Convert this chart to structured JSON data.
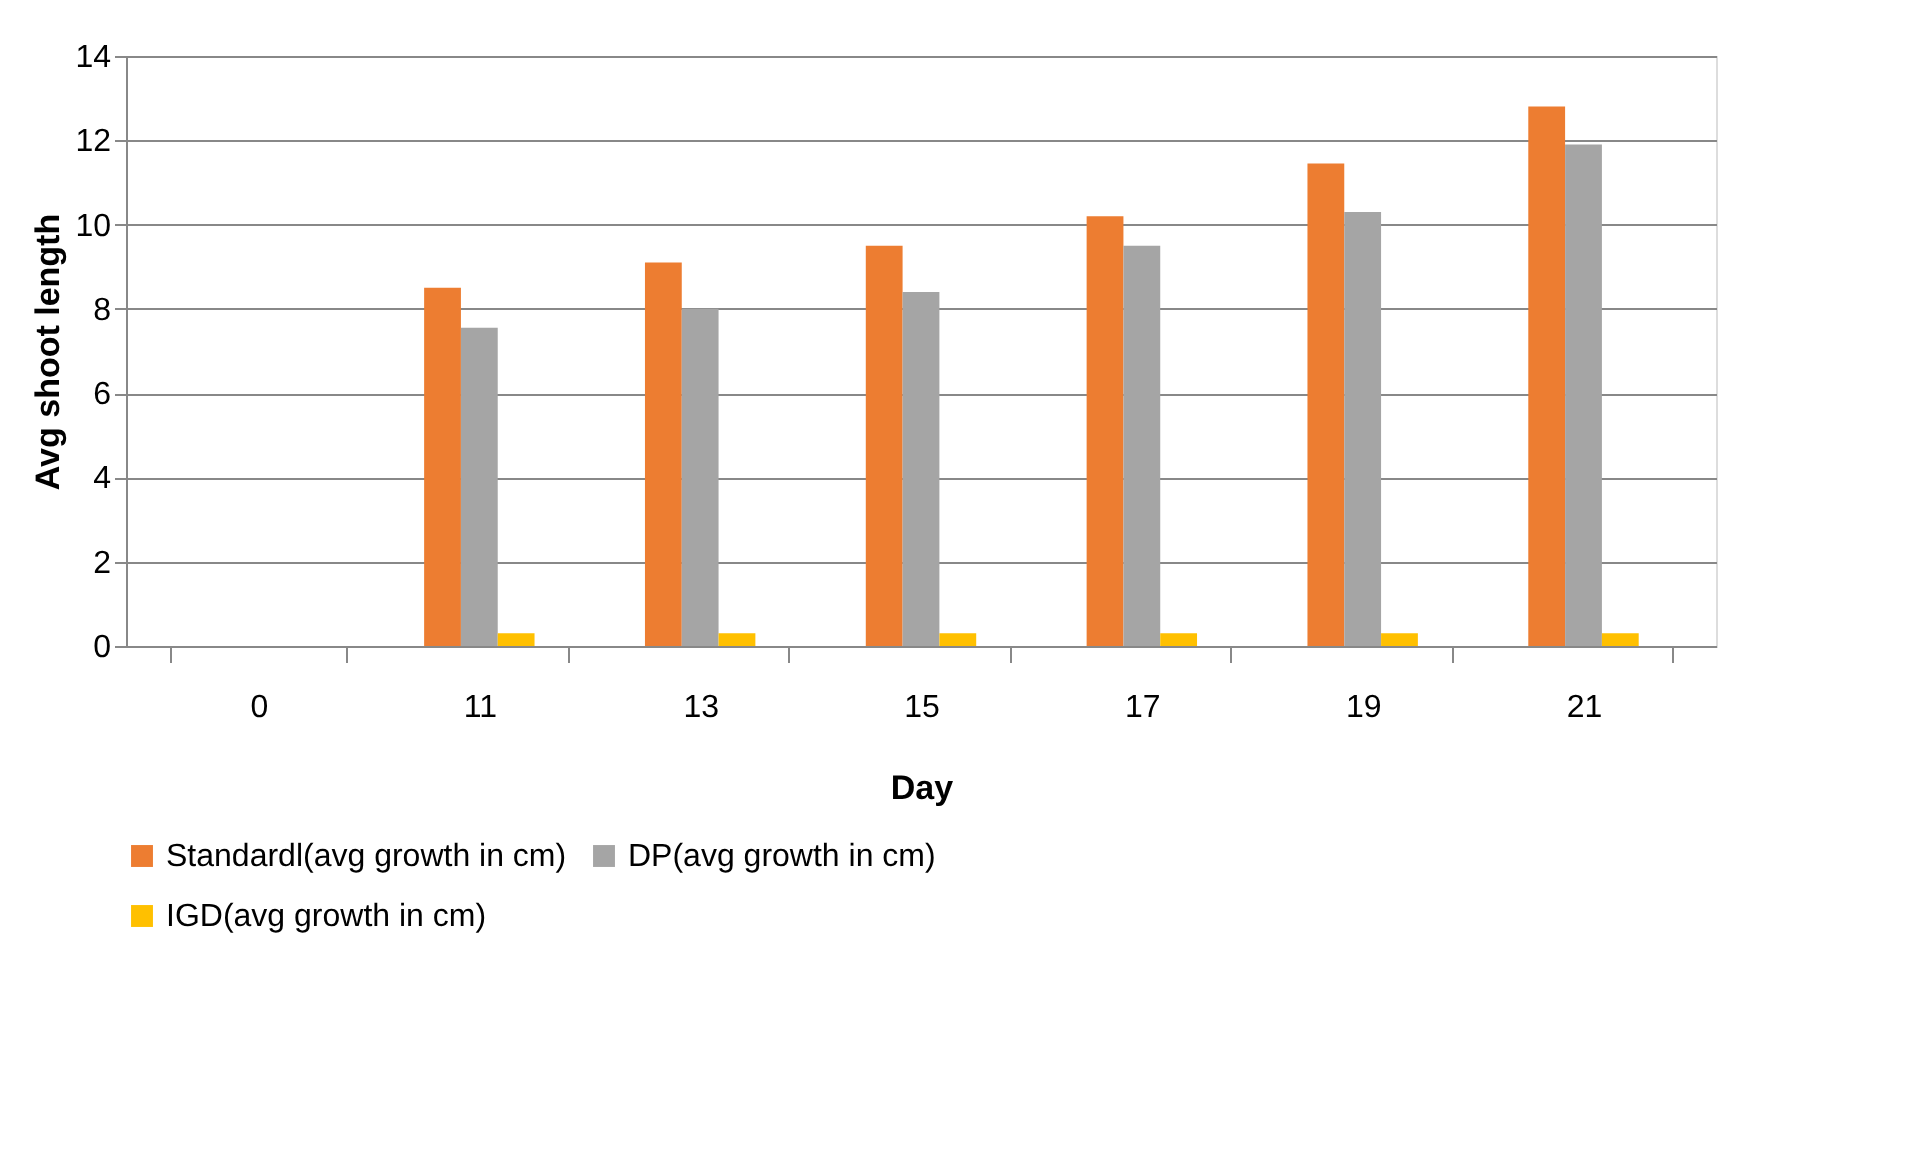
{
  "chart_data": {
    "type": "bar",
    "xlabel": "Day",
    "ylabel": "Avg shoot length",
    "categories": [
      "0",
      "11",
      "13",
      "15",
      "17",
      "19",
      "21"
    ],
    "series": [
      {
        "name": "Standardl(avg growth in cm)",
        "color": "#ed7d31",
        "values": [
          0,
          8.5,
          9.1,
          9.5,
          10.2,
          11.45,
          12.8
        ]
      },
      {
        "name": "DP(avg growth in cm)",
        "color": "#a5a5a5",
        "values": [
          0,
          7.55,
          8.0,
          8.4,
          9.5,
          10.3,
          11.9
        ]
      },
      {
        "name": "IGD(avg growth in cm)",
        "color": "#ffc000",
        "values": [
          0,
          0.3,
          0.3,
          0.3,
          0.3,
          0.3,
          0.3
        ]
      }
    ],
    "ylim": [
      0,
      14
    ],
    "yticks": [
      0,
      2,
      4,
      6,
      8,
      10,
      12,
      14
    ],
    "grid": "y",
    "legend": "bottom"
  }
}
